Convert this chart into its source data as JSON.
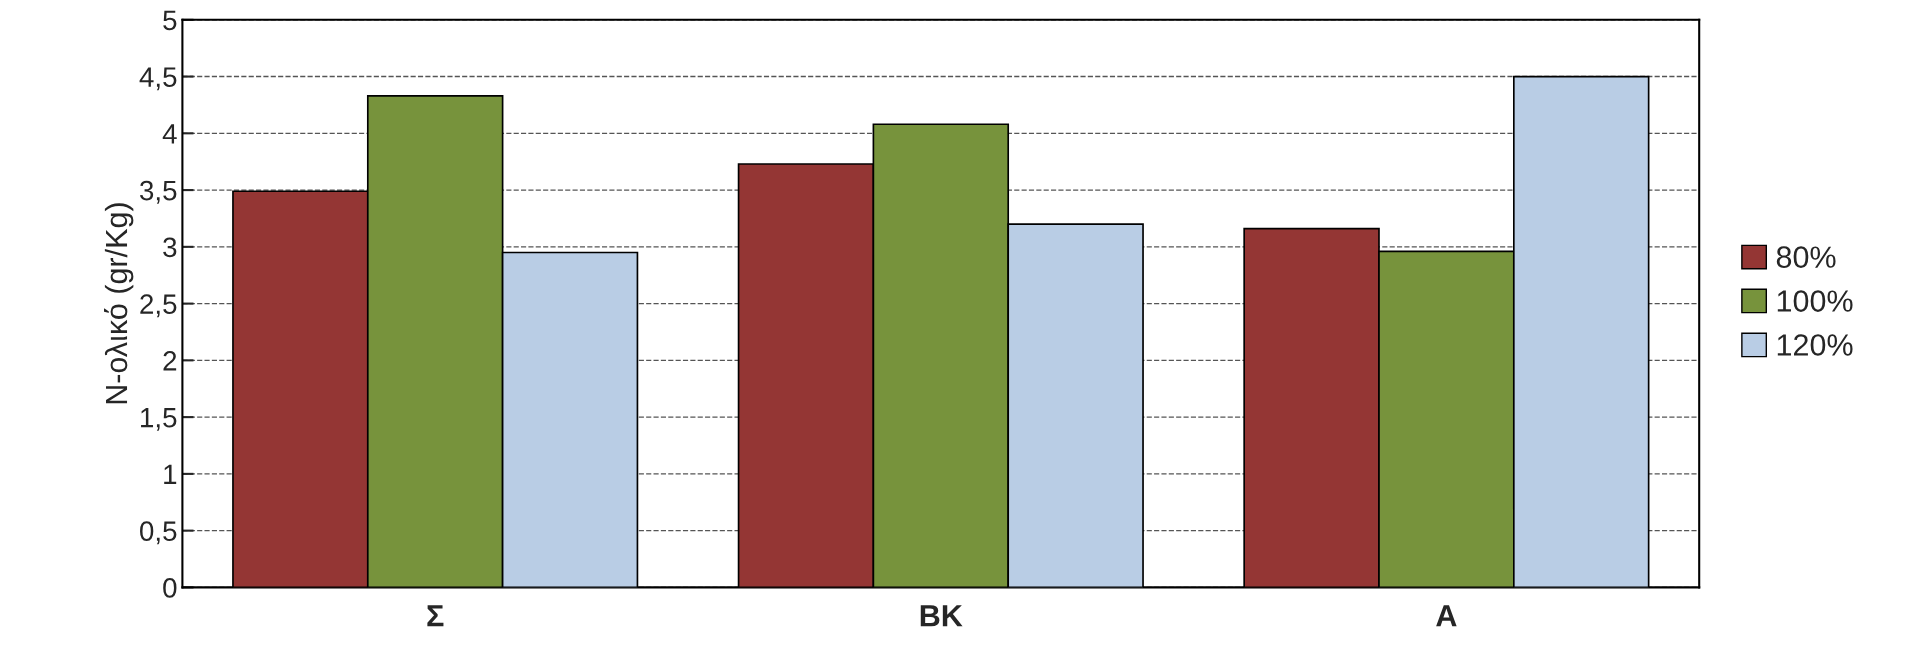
{
  "chart_data": {
    "type": "bar",
    "ylabel": "N-ολικό (gr/Kg)",
    "categories": [
      "Σ",
      "ΒΚ",
      "Α"
    ],
    "series": [
      {
        "name": "80%",
        "color": "#943634",
        "values": [
          3.49,
          3.73,
          3.16
        ]
      },
      {
        "name": "100%",
        "color": "#77933c",
        "values": [
          4.33,
          4.08,
          2.96
        ]
      },
      {
        "name": "120%",
        "color": "#b9cde5",
        "values": [
          2.95,
          3.2,
          4.5
        ]
      }
    ],
    "ylim": [
      0,
      5
    ],
    "yticks": [
      0,
      {
        "value": 0.5,
        "label": "0,5"
      },
      1,
      {
        "value": 1.5,
        "label": "1,5"
      },
      2,
      {
        "value": 2.5,
        "label": "2,5"
      },
      3,
      {
        "value": 3.5,
        "label": "3,5"
      },
      4,
      {
        "value": 4.5,
        "label": "4,5"
      },
      5
    ],
    "grid": "y",
    "legend": "right"
  }
}
